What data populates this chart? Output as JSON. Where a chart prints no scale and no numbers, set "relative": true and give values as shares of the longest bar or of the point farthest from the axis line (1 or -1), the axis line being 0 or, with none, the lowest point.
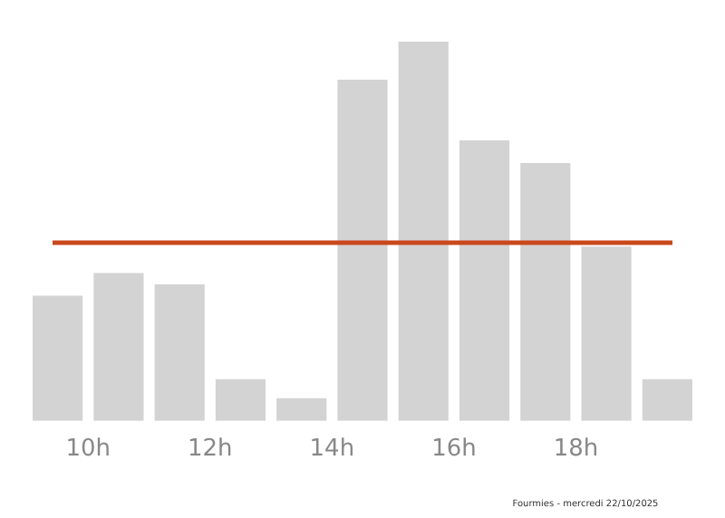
{
  "chart_data": {
    "type": "bar",
    "relative": true,
    "x": [
      9.5,
      10.5,
      11.5,
      12.5,
      13.5,
      14.5,
      15.5,
      16.5,
      17.5,
      18.5,
      19.5
    ],
    "values": [
      0.33,
      0.39,
      0.36,
      0.11,
      0.06,
      0.9,
      1,
      0.74,
      0.68,
      0.46,
      0.11
    ],
    "color": "#d3d3d3",
    "xlim": [
      9,
      20
    ],
    "xticks": [
      {
        "value": 10,
        "label": "10h"
      },
      {
        "value": 12,
        "label": "12h"
      },
      {
        "value": 14,
        "label": "14h"
      },
      {
        "value": 16,
        "label": "16h"
      },
      {
        "value": 18,
        "label": "18h"
      }
    ],
    "ref_lines": [
      {
        "axis": "y",
        "value": 0.47,
        "color": "#c9481c"
      }
    ],
    "annotations": [
      "Fourmies - mercredi 22/10/2025"
    ],
    "grid": false,
    "legend": false
  }
}
